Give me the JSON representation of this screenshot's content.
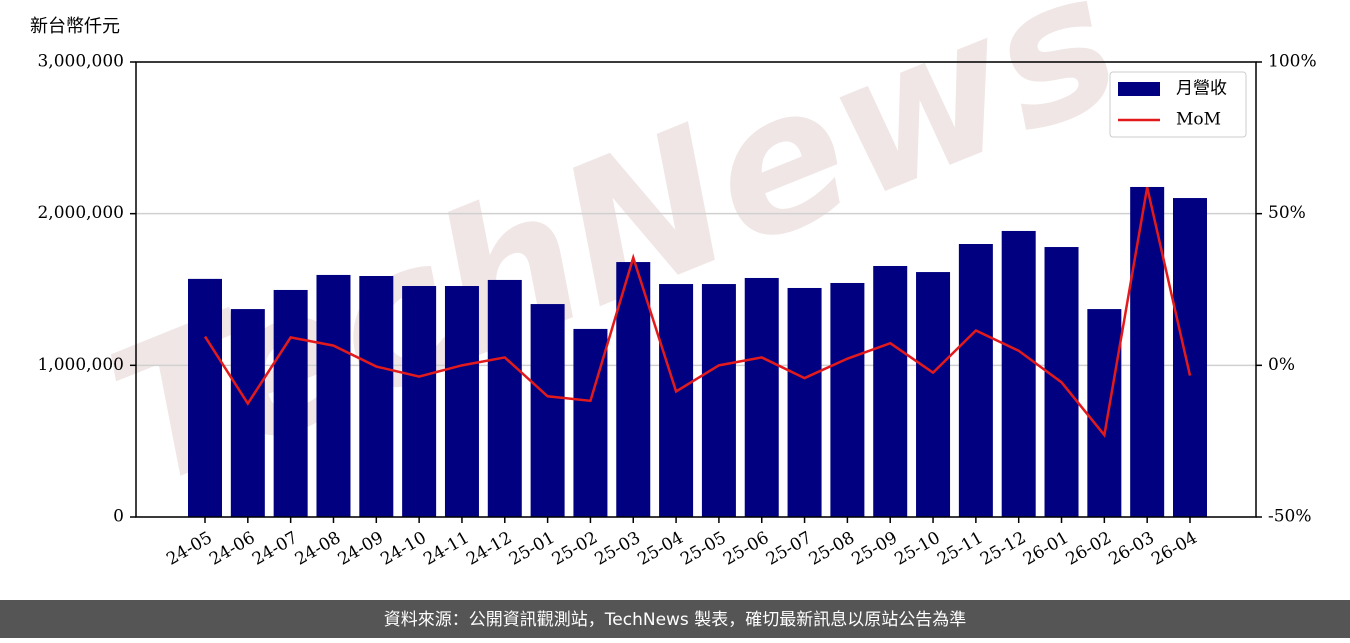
{
  "chart_data": {
    "type": "bar-line",
    "y_label": "新台幣仟元",
    "watermark": "TechNews",
    "footer": "資料來源：公開資訊觀測站，TechNews 製表，確切最新訊息以原站公告為準",
    "categories": [
      "24-05",
      "24-06",
      "24-07",
      "24-08",
      "24-09",
      "24-10",
      "24-11",
      "24-12",
      "25-01",
      "25-02",
      "25-03",
      "25-04",
      "25-05",
      "25-06",
      "25-07",
      "25-08",
      "25-09",
      "25-10",
      "25-11",
      "25-12",
      "26-01",
      "26-02",
      "26-03",
      "26-04"
    ],
    "series": [
      {
        "name": "月營收",
        "type": "bar",
        "color": "#000080",
        "values": [
          1570000,
          1371000,
          1497000,
          1596000,
          1589000,
          1523000,
          1523000,
          1563000,
          1404000,
          1240000,
          1681000,
          1536000,
          1536000,
          1576000,
          1510000,
          1543000,
          1655000,
          1615000,
          1800000,
          1886000,
          1780000,
          1371000,
          2176000,
          2103000
        ]
      },
      {
        "name": "MoM",
        "type": "line",
        "axis": "y2",
        "color": "#e31a1c",
        "values": [
          9.5,
          -12.6,
          9.2,
          6.5,
          -0.4,
          -3.7,
          0,
          2.6,
          -10.2,
          -11.7,
          35.5,
          -8.6,
          0,
          2.6,
          -4.2,
          2.2,
          7.3,
          -2.4,
          11.5,
          4.8,
          -5.6,
          -23,
          58.7,
          -3.4
        ]
      }
    ],
    "ylim": [
      0,
      3000000
    ],
    "yticks": [
      0,
      {
        "value": 1000000,
        "label": "1,000,000"
      },
      {
        "value": 2000000,
        "label": "2,000,000"
      },
      {
        "value": 3000000,
        "label": "3,000,000"
      }
    ],
    "y2lim": [
      -50,
      100
    ],
    "y2ticks": [
      {
        "value": -50,
        "label": "-50%"
      },
      {
        "value": 0,
        "label": "0%"
      },
      {
        "value": 50,
        "label": "50%"
      },
      {
        "value": 100,
        "label": "100%"
      }
    ],
    "grid": true,
    "legend": "upper right"
  }
}
